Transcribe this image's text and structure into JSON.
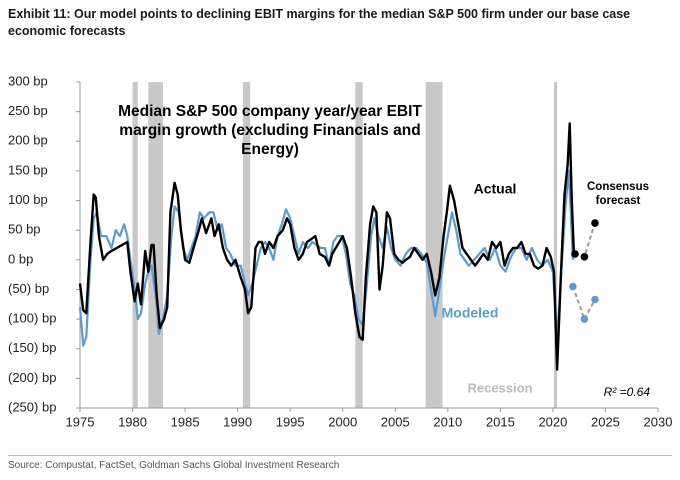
{
  "header": {
    "title": "Exhibit 11: Our model points to declining EBIT margins for the median S&P 500 firm under our base case economic forecasts"
  },
  "chart_data": {
    "type": "line",
    "title": "Median S&P 500 company year/year EBIT margin growth (excluding Financials and Energy)",
    "recession_label": "Recession",
    "annotation": "R² =0.64",
    "recession_color": "#c8c8c8",
    "recessions": [
      [
        1980.0,
        1980.5
      ],
      [
        1981.5,
        1982.9
      ],
      [
        1990.5,
        1991.2
      ],
      [
        2001.2,
        2001.9
      ],
      [
        2007.9,
        2009.5
      ],
      [
        2020.1,
        2020.4
      ]
    ],
    "xlim": [
      1975,
      2030
    ],
    "xticks": [
      1975,
      1980,
      1985,
      1990,
      1995,
      2000,
      2005,
      2010,
      2015,
      2020,
      2025,
      2030
    ],
    "ylim": [
      -250,
      300
    ],
    "yticks": [
      {
        "value": 300,
        "label": "300  bp"
      },
      {
        "value": 250,
        "label": "250  bp"
      },
      {
        "value": 200,
        "label": "200  bp"
      },
      {
        "value": 150,
        "label": "150  bp"
      },
      {
        "value": 100,
        "label": "100  bp"
      },
      {
        "value": 50,
        "label": "50  bp"
      },
      {
        "value": 0,
        "label": "0  bp"
      },
      {
        "value": -50,
        "label": "(50) bp"
      },
      {
        "value": -100,
        "label": "(100) bp"
      },
      {
        "value": -150,
        "label": "(150) bp"
      },
      {
        "value": -200,
        "label": "(200) bp"
      },
      {
        "value": -250,
        "label": "(250) bp"
      }
    ],
    "grid": false,
    "series": [
      {
        "name": "Actual",
        "color": "#000000",
        "style": "line",
        "x": [
          1975.0,
          1975.3,
          1975.6,
          1976.0,
          1976.3,
          1976.5,
          1976.8,
          1977.2,
          1977.6,
          1978.0,
          1978.5,
          1979.0,
          1979.5,
          1979.8,
          1980.2,
          1980.5,
          1980.8,
          1981.2,
          1981.5,
          1981.8,
          1982.0,
          1982.3,
          1982.6,
          1983.0,
          1983.3,
          1983.6,
          1984.0,
          1984.3,
          1984.6,
          1985.0,
          1985.4,
          1985.8,
          1986.3,
          1986.6,
          1987.0,
          1987.5,
          1987.8,
          1988.2,
          1988.6,
          1989.0,
          1989.4,
          1989.8,
          1990.3,
          1990.7,
          1991.0,
          1991.3,
          1991.7,
          1992.0,
          1992.3,
          1992.6,
          1993.0,
          1993.4,
          1993.8,
          1994.3,
          1994.7,
          1995.0,
          1995.4,
          1995.8,
          1996.2,
          1996.6,
          1997.0,
          1997.4,
          1997.8,
          1998.3,
          1998.7,
          1999.0,
          1999.5,
          2000.0,
          2000.4,
          2000.8,
          2001.2,
          2001.6,
          2001.9,
          2002.2,
          2002.6,
          2002.9,
          2003.2,
          2003.5,
          2003.8,
          2004.2,
          2004.5,
          2004.9,
          2005.3,
          2005.7,
          2006.0,
          2006.4,
          2006.8,
          2007.2,
          2007.6,
          2008.0,
          2008.4,
          2008.8,
          2009.2,
          2009.6,
          2009.9,
          2010.2,
          2010.6,
          2011.0,
          2011.4,
          2011.8,
          2012.2,
          2012.6,
          2013.0,
          2013.4,
          2013.8,
          2014.2,
          2014.6,
          2015.0,
          2015.4,
          2015.8,
          2016.2,
          2016.6,
          2017.0,
          2017.4,
          2017.8,
          2018.2,
          2018.6,
          2019.0,
          2019.4,
          2019.8,
          2020.1,
          2020.4,
          2020.8,
          2021.1,
          2021.4,
          2021.6,
          2021.8,
          2022.0
        ],
        "values": [
          -40,
          -85,
          -90,
          30,
          110,
          105,
          40,
          0,
          10,
          15,
          20,
          25,
          30,
          -20,
          -70,
          -40,
          -75,
          15,
          -20,
          25,
          25,
          -60,
          -115,
          -100,
          -80,
          80,
          130,
          110,
          50,
          0,
          -5,
          20,
          50,
          70,
          45,
          70,
          40,
          60,
          20,
          0,
          -10,
          0,
          -30,
          -50,
          -90,
          -80,
          20,
          30,
          30,
          10,
          30,
          20,
          40,
          50,
          70,
          60,
          20,
          0,
          10,
          30,
          35,
          40,
          10,
          5,
          -10,
          10,
          25,
          40,
          20,
          -30,
          -90,
          -130,
          -135,
          -30,
          60,
          90,
          80,
          -50,
          -10,
          80,
          70,
          10,
          0,
          -5,
          0,
          5,
          20,
          10,
          0,
          10,
          -20,
          -60,
          -30,
          40,
          80,
          125,
          100,
          60,
          20,
          10,
          0,
          -10,
          0,
          10,
          0,
          30,
          20,
          30,
          -10,
          10,
          20,
          20,
          30,
          10,
          10,
          -10,
          -15,
          -10,
          20,
          5,
          -20,
          -185,
          -10,
          110,
          160,
          230,
          100,
          10
        ]
      },
      {
        "name": "Modeled",
        "color": "#5b9bd5",
        "style": "line",
        "x": [
          1975.0,
          1975.3,
          1975.6,
          1976.0,
          1976.3,
          1976.6,
          1977.0,
          1977.5,
          1978.0,
          1978.4,
          1978.8,
          1979.2,
          1979.5,
          1979.8,
          1980.2,
          1980.5,
          1980.8,
          1981.2,
          1981.5,
          1981.8,
          1982.2,
          1982.5,
          1982.9,
          1983.3,
          1983.7,
          1984.0,
          1984.4,
          1984.8,
          1985.2,
          1985.6,
          1986.0,
          1986.4,
          1986.8,
          1987.3,
          1987.7,
          1988.1,
          1988.5,
          1988.9,
          1989.3,
          1989.8,
          1990.3,
          1990.7,
          1991.0,
          1991.4,
          1991.8,
          1992.2,
          1992.6,
          1993.0,
          1993.4,
          1993.8,
          1994.2,
          1994.6,
          1995.0,
          1995.4,
          1995.8,
          1996.2,
          1996.7,
          1997.1,
          1997.5,
          1997.9,
          1998.3,
          1998.7,
          1999.1,
          1999.5,
          1999.9,
          2000.3,
          2000.7,
          2001.1,
          2001.5,
          2001.9,
          2002.3,
          2002.7,
          2003.0,
          2003.4,
          2003.8,
          2004.2,
          2004.6,
          2005.0,
          2005.5,
          2006.0,
          2006.5,
          2007.0,
          2007.5,
          2008.0,
          2008.4,
          2008.8,
          2009.2,
          2009.6,
          2010.0,
          2010.4,
          2010.8,
          2011.2,
          2011.6,
          2012.0,
          2012.5,
          2013.0,
          2013.5,
          2014.0,
          2014.5,
          2015.0,
          2015.5,
          2016.0,
          2016.5,
          2017.0,
          2017.5,
          2018.0,
          2018.5,
          2019.0,
          2019.5,
          2020.0,
          2020.4,
          2020.8,
          2021.2,
          2021.5,
          2021.7,
          2021.9
        ],
        "values": [
          -80,
          -145,
          -130,
          0,
          70,
          80,
          40,
          40,
          20,
          50,
          40,
          60,
          40,
          0,
          -50,
          -100,
          -90,
          -40,
          -20,
          -10,
          -60,
          -125,
          -100,
          -60,
          40,
          90,
          80,
          20,
          0,
          20,
          40,
          80,
          70,
          80,
          80,
          50,
          60,
          20,
          10,
          -10,
          -10,
          -40,
          -60,
          -40,
          -10,
          20,
          30,
          20,
          0,
          40,
          60,
          85,
          70,
          40,
          10,
          30,
          20,
          30,
          25,
          20,
          20,
          -10,
          30,
          40,
          40,
          10,
          -40,
          -60,
          -100,
          -110,
          -40,
          40,
          70,
          40,
          20,
          55,
          20,
          0,
          -10,
          10,
          20,
          20,
          10,
          -5,
          -50,
          -95,
          -50,
          0,
          40,
          80,
          50,
          10,
          0,
          -10,
          0,
          10,
          20,
          0,
          20,
          -10,
          -20,
          5,
          20,
          20,
          0,
          20,
          0,
          -10,
          0,
          -20,
          -135,
          -20,
          90,
          150,
          80,
          0
        ]
      },
      {
        "name": "Consensus forecast",
        "color": "#000000",
        "style": "dots",
        "x": [
          2022.1,
          2023.0,
          2024.0
        ],
        "values": [
          10,
          5,
          62
        ]
      },
      {
        "color": "#5b9bd5",
        "style": "dots",
        "x": [
          2021.9,
          2023.0,
          2024.0
        ],
        "values": [
          -45,
          -100,
          -67
        ]
      }
    ]
  },
  "footer": {
    "source": "Source: Compustat, FactSet, Goldman Sachs Global Investment Research"
  }
}
